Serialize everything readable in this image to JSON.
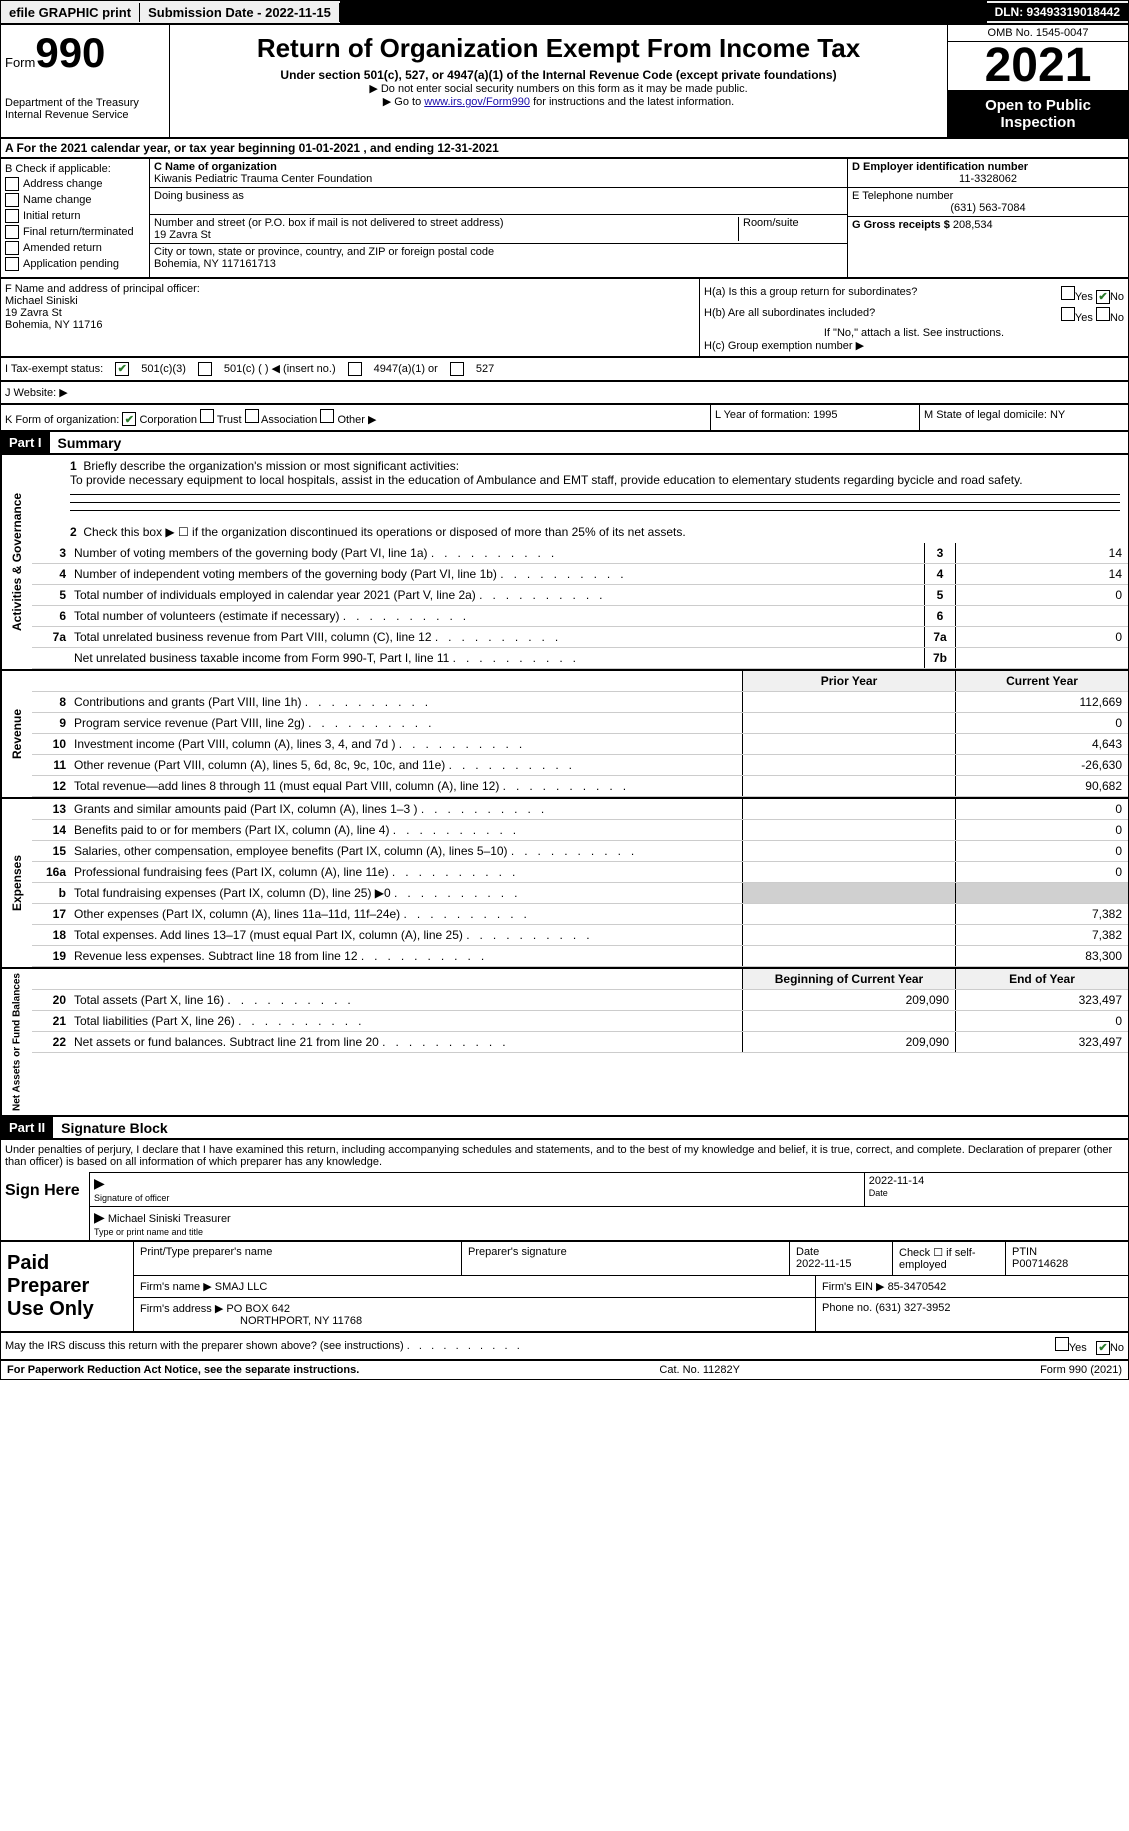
{
  "topbar": {
    "efile": "efile GRAPHIC print",
    "submission": "Submission Date - 2022-11-15",
    "dln": "DLN: 93493319018442"
  },
  "header": {
    "form_label": "Form",
    "form_num": "990",
    "dept": "Department of the Treasury\nInternal Revenue Service",
    "title": "Return of Organization Exempt From Income Tax",
    "subtitle": "Under section 501(c), 527, or 4947(a)(1) of the Internal Revenue Code (except private foundations)",
    "note1": "▶ Do not enter social security numbers on this form as it may be made public.",
    "note2_pre": "▶ Go to ",
    "note2_link": "www.irs.gov/Form990",
    "note2_post": " for instructions and the latest information.",
    "omb": "OMB No. 1545-0047",
    "year": "2021",
    "otp": "Open to Public Inspection"
  },
  "sectionA": "A For the 2021 calendar year, or tax year beginning 01-01-2021   , and ending 12-31-2021",
  "sectionB": {
    "label": "B Check if applicable:",
    "items": [
      "Address change",
      "Name change",
      "Initial return",
      "Final return/terminated",
      "Amended return",
      "Application pending"
    ]
  },
  "sectionC": {
    "name_label": "C Name of organization",
    "name": "Kiwanis Pediatric Trauma Center Foundation",
    "dba_label": "Doing business as",
    "street_label": "Number and street (or P.O. box if mail is not delivered to street address)",
    "room_label": "Room/suite",
    "street": "19 Zavra St",
    "city_label": "City or town, state or province, country, and ZIP or foreign postal code",
    "city": "Bohemia, NY  117161713"
  },
  "sectionD": {
    "ein_label": "D  Employer identification number",
    "ein": "11-3328062",
    "phone_label": "E  Telephone number",
    "phone": "(631) 563-7084",
    "gross_label": "G  Gross receipts $",
    "gross": "208,534"
  },
  "sectionF": {
    "label": "F  Name and address of principal officer:",
    "name": "Michael Siniski",
    "street": "19 Zavra St",
    "city": "Bohemia, NY  11716"
  },
  "sectionH": {
    "a": "H(a)  Is this a group return for subordinates?",
    "b": "H(b)  Are all subordinates included?",
    "bnote": "If \"No,\" attach a list. See instructions.",
    "c": "H(c)  Group exemption number ▶",
    "yes": "Yes",
    "no": "No"
  },
  "sectionI": {
    "label": "I  Tax-exempt status:",
    "opts": [
      "501(c)(3)",
      "501(c) (  ) ◀ (insert no.)",
      "4947(a)(1) or",
      "527"
    ]
  },
  "sectionJ": "J  Website: ▶",
  "sectionK": {
    "label": "K Form of organization:",
    "opts": [
      "Corporation",
      "Trust",
      "Association",
      "Other ▶"
    ]
  },
  "sectionL": {
    "label": "L Year of formation:",
    "val": "1995"
  },
  "sectionM": {
    "label": "M State of legal domicile:",
    "val": "NY"
  },
  "part1": {
    "hdr": "Part I",
    "title": "Summary"
  },
  "summary": {
    "q1": "Briefly describe the organization's mission or most significant activities:",
    "mission": "To provide necessary equipment to local hospitals, assist in the education of Ambulance and EMT staff, provide education to elementary students regarding bycicle and road safety.",
    "q2": "Check this box ▶ ☐  if the organization discontinued its operations or disposed of more than 25% of its net assets.",
    "lines_ag": [
      {
        "n": "3",
        "d": "Number of voting members of the governing body (Part VI, line 1a)",
        "box": "3",
        "v": "14"
      },
      {
        "n": "4",
        "d": "Number of independent voting members of the governing body (Part VI, line 1b)",
        "box": "4",
        "v": "14"
      },
      {
        "n": "5",
        "d": "Total number of individuals employed in calendar year 2021 (Part V, line 2a)",
        "box": "5",
        "v": "0"
      },
      {
        "n": "6",
        "d": "Total number of volunteers (estimate if necessary)",
        "box": "6",
        "v": ""
      },
      {
        "n": "7a",
        "d": "Total unrelated business revenue from Part VIII, column (C), line 12",
        "box": "7a",
        "v": "0"
      },
      {
        "n": "",
        "d": "Net unrelated business taxable income from Form 990-T, Part I, line 11",
        "box": "7b",
        "v": ""
      }
    ],
    "col_prior": "Prior Year",
    "col_current": "Current Year",
    "lines_rev": [
      {
        "n": "8",
        "d": "Contributions and grants (Part VIII, line 1h)",
        "p": "",
        "c": "112,669"
      },
      {
        "n": "9",
        "d": "Program service revenue (Part VIII, line 2g)",
        "p": "",
        "c": "0"
      },
      {
        "n": "10",
        "d": "Investment income (Part VIII, column (A), lines 3, 4, and 7d )",
        "p": "",
        "c": "4,643"
      },
      {
        "n": "11",
        "d": "Other revenue (Part VIII, column (A), lines 5, 6d, 8c, 9c, 10c, and 11e)",
        "p": "",
        "c": "-26,630"
      },
      {
        "n": "12",
        "d": "Total revenue—add lines 8 through 11 (must equal Part VIII, column (A), line 12)",
        "p": "",
        "c": "90,682"
      }
    ],
    "lines_exp": [
      {
        "n": "13",
        "d": "Grants and similar amounts paid (Part IX, column (A), lines 1–3 )",
        "p": "",
        "c": "0"
      },
      {
        "n": "14",
        "d": "Benefits paid to or for members (Part IX, column (A), line 4)",
        "p": "",
        "c": "0"
      },
      {
        "n": "15",
        "d": "Salaries, other compensation, employee benefits (Part IX, column (A), lines 5–10)",
        "p": "",
        "c": "0"
      },
      {
        "n": "16a",
        "d": "Professional fundraising fees (Part IX, column (A), line 11e)",
        "p": "",
        "c": "0"
      },
      {
        "n": "b",
        "d": "Total fundraising expenses (Part IX, column (D), line 25) ▶0",
        "p": "grey",
        "c": "grey"
      },
      {
        "n": "17",
        "d": "Other expenses (Part IX, column (A), lines 11a–11d, 11f–24e)",
        "p": "",
        "c": "7,382"
      },
      {
        "n": "18",
        "d": "Total expenses. Add lines 13–17 (must equal Part IX, column (A), line 25)",
        "p": "",
        "c": "7,382"
      },
      {
        "n": "19",
        "d": "Revenue less expenses. Subtract line 18 from line 12",
        "p": "",
        "c": "83,300"
      }
    ],
    "col_begin": "Beginning of Current Year",
    "col_end": "End of Year",
    "lines_net": [
      {
        "n": "20",
        "d": "Total assets (Part X, line 16)",
        "p": "209,090",
        "c": "323,497"
      },
      {
        "n": "21",
        "d": "Total liabilities (Part X, line 26)",
        "p": "",
        "c": "0"
      },
      {
        "n": "22",
        "d": "Net assets or fund balances. Subtract line 21 from line 20",
        "p": "209,090",
        "c": "323,497"
      }
    ],
    "vlabels": {
      "ag": "Activities & Governance",
      "rev": "Revenue",
      "exp": "Expenses",
      "net": "Net Assets or Fund Balances"
    }
  },
  "part2": {
    "hdr": "Part II",
    "title": "Signature Block"
  },
  "sig": {
    "declaration": "Under penalties of perjury, I declare that I have examined this return, including accompanying schedules and statements, and to the best of my knowledge and belief, it is true, correct, and complete. Declaration of preparer (other than officer) is based on all information of which preparer has any knowledge.",
    "sign_here": "Sign Here",
    "sig_officer": "Signature of officer",
    "date": "Date",
    "date_val": "2022-11-14",
    "name": "Michael Siniski  Treasurer",
    "name_label": "Type or print name and title"
  },
  "paid": {
    "label": "Paid Preparer Use Only",
    "h_print": "Print/Type preparer's name",
    "h_sig": "Preparer's signature",
    "h_date": "Date",
    "date_val": "2022-11-15",
    "h_check": "Check ☐ if self-employed",
    "h_ptin": "PTIN",
    "ptin": "P00714628",
    "firm_name_l": "Firm's name    ▶",
    "firm_name": "SMAJ LLC",
    "firm_ein_l": "Firm's EIN ▶",
    "firm_ein": "85-3470542",
    "firm_addr_l": "Firm's address ▶",
    "firm_addr": "PO BOX 642",
    "firm_city": "NORTHPORT, NY  11768",
    "phone_l": "Phone no.",
    "phone": "(631) 327-3952"
  },
  "discuss": {
    "q": "May the IRS discuss this return with the preparer shown above? (see instructions)",
    "yes": "Yes",
    "no": "No"
  },
  "footer": {
    "pra": "For Paperwork Reduction Act Notice, see the separate instructions.",
    "cat": "Cat. No. 11282Y",
    "form": "Form 990 (2021)"
  }
}
